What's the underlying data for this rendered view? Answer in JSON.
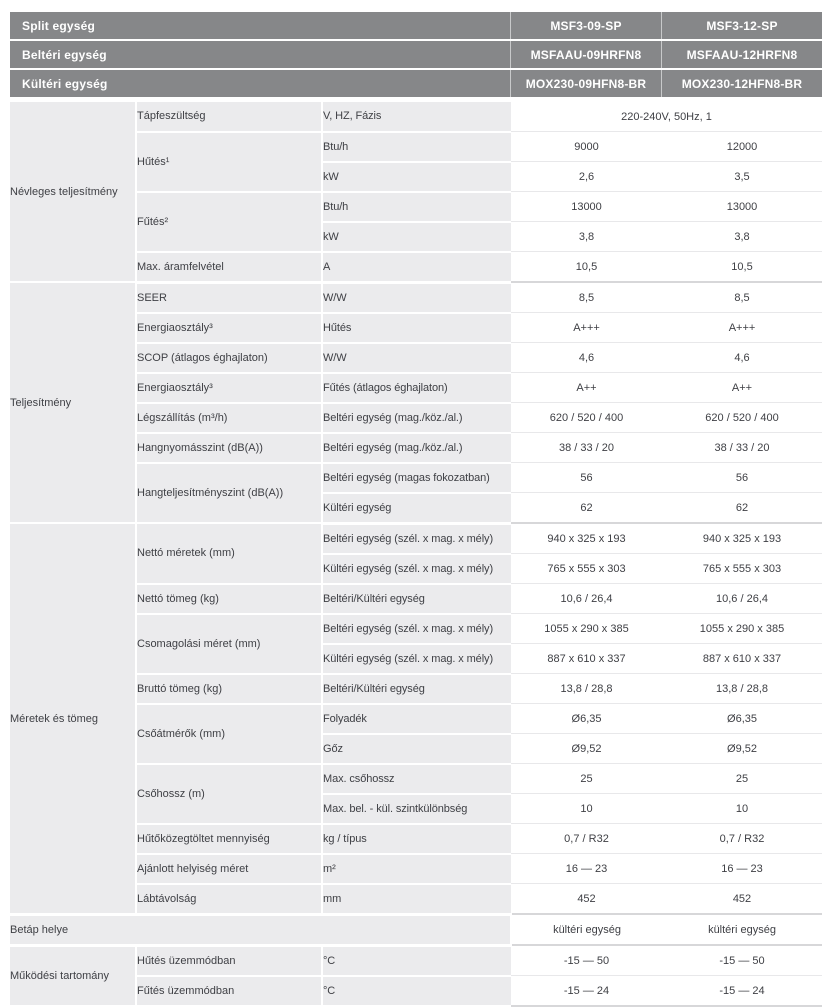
{
  "colors": {
    "header_bar": "#868789",
    "cell_gray": "#ebebed",
    "text": "#3f4045",
    "header_text": "#ffffff",
    "row_line": "#e8e8ea",
    "section_line": "#d7d7d9"
  },
  "table": {
    "header_rows": [
      {
        "label": "Split egység",
        "values": [
          "MSF3-09-SP",
          "MSF3-12-SP"
        ]
      },
      {
        "label": "Beltéri egység",
        "values": [
          "MSFAAU-09HRFN8",
          "MSFAAU-12HRFN8"
        ]
      },
      {
        "label": "Kültéri egység",
        "values": [
          "MOX230-09HFN8-BR",
          "MOX230-12HFN8-BR"
        ]
      }
    ],
    "sections": [
      {
        "label": "Névleges teljesítmény",
        "rows": [
          {
            "property": "Tápfeszültség",
            "property_rowspan": 1,
            "unit": "V, HZ, Fázis",
            "values": [
              "220-240V, 50Hz, 1"
            ],
            "values_span": true
          },
          {
            "property": "Hűtés¹",
            "property_rowspan": 2,
            "unit": "Btu/h",
            "values": [
              "9000",
              "12000"
            ]
          },
          {
            "unit": "kW",
            "values": [
              "2,6",
              "3,5"
            ]
          },
          {
            "property": "Fűtés²",
            "property_rowspan": 2,
            "unit": "Btu/h",
            "values": [
              "13000",
              "13000"
            ]
          },
          {
            "unit": "kW",
            "values": [
              "3,8",
              "3,8"
            ]
          },
          {
            "property": "Max. áramfelvétel",
            "property_rowspan": 1,
            "unit": "A",
            "values": [
              "10,5",
              "10,5"
            ]
          }
        ]
      },
      {
        "label": "Teljesítmény",
        "rows": [
          {
            "property": "SEER",
            "property_rowspan": 1,
            "unit": "W/W",
            "values": [
              "8,5",
              "8,5"
            ]
          },
          {
            "property": "Energiaosztály³",
            "property_rowspan": 1,
            "unit": "Hűtés",
            "values": [
              "A+++",
              "A+++"
            ]
          },
          {
            "property": "SCOP  (átlagos éghajlaton)",
            "property_rowspan": 1,
            "unit": "W/W",
            "values": [
              "4,6",
              "4,6"
            ]
          },
          {
            "property": "Energiaosztály³",
            "property_rowspan": 1,
            "unit": "Fűtés (átlagos éghajlaton)",
            "values": [
              "A++",
              "A++"
            ]
          },
          {
            "property": "Légszállítás (m³/h)",
            "property_rowspan": 1,
            "unit": "Beltéri egység (mag./köz./al.)",
            "values": [
              "620 / 520 / 400",
              "620 / 520 / 400"
            ]
          },
          {
            "property": "Hangnyomásszint (dB(A))",
            "property_rowspan": 1,
            "unit": "Beltéri egység (mag./köz./al.)",
            "values": [
              "38 / 33 / 20",
              "38 / 33 / 20"
            ]
          },
          {
            "property": "Hangteljesítményszint (dB(A))",
            "property_rowspan": 2,
            "unit": "Beltéri egység (magas fokozatban)",
            "values": [
              "56",
              "56"
            ]
          },
          {
            "unit": "Kültéri egység",
            "values": [
              "62",
              "62"
            ]
          }
        ]
      },
      {
        "label": "Méretek és tömeg",
        "rows": [
          {
            "property": "Nettó méretek (mm)",
            "property_rowspan": 2,
            "unit": "Beltéri egység (szél. x mag. x mély)",
            "values": [
              "940 x 325 x 193",
              "940 x 325 x 193"
            ]
          },
          {
            "unit": "Kültéri egység (szél. x mag. x mély)",
            "values": [
              "765 x 555 x 303",
              "765 x 555 x 303"
            ]
          },
          {
            "property": "Nettó tömeg (kg)",
            "property_rowspan": 1,
            "unit": "Beltéri/Kültéri egység",
            "values": [
              "10,6 / 26,4",
              "10,6 / 26,4"
            ]
          },
          {
            "property": "Csomagolási méret (mm)",
            "property_rowspan": 2,
            "unit": "Beltéri egység (szél. x mag. x mély)",
            "values": [
              "1055 x 290 x 385",
              "1055 x 290 x 385"
            ]
          },
          {
            "unit": "Kültéri egység (szél. x mag. x mély)",
            "values": [
              "887 x 610 x 337",
              "887 x 610 x 337"
            ]
          },
          {
            "property": "Bruttó tömeg (kg)",
            "property_rowspan": 1,
            "unit": "Beltéri/Kültéri egység",
            "values": [
              "13,8 / 28,8",
              "13,8 / 28,8"
            ]
          },
          {
            "property": "Csőátmérők (mm)",
            "property_rowspan": 2,
            "unit": "Folyadék",
            "values": [
              "Ø6,35",
              "Ø6,35"
            ]
          },
          {
            "unit": "Gőz",
            "values": [
              "Ø9,52",
              "Ø9,52"
            ]
          },
          {
            "property": "Csőhossz (m)",
            "property_rowspan": 2,
            "unit": "Max. csőhossz",
            "values": [
              "25",
              "25"
            ]
          },
          {
            "unit": "Max. bel. - kül. szintkülönbség",
            "values": [
              "10",
              "10"
            ]
          },
          {
            "property": "Hűtőközegtöltet mennyiség",
            "property_rowspan": 1,
            "unit": "kg / típus",
            "values": [
              "0,7 / R32",
              "0,7 / R32"
            ]
          },
          {
            "property": "Ajánlott helyiség méret",
            "property_rowspan": 1,
            "unit": "m²",
            "values": [
              "16 — 23",
              "16 — 23"
            ]
          },
          {
            "property": "Lábtávolság",
            "property_rowspan": 1,
            "unit": "mm",
            "values": [
              "452",
              "452"
            ]
          }
        ]
      },
      {
        "label": "Betáp helye",
        "label_colspan": 3,
        "rows": [
          {
            "values": [
              "kültéri egység",
              "kültéri egység"
            ]
          }
        ]
      },
      {
        "label": "Működési tartomány",
        "rows": [
          {
            "property": "Hűtés üzemmódban",
            "property_rowspan": 1,
            "unit": "°C",
            "values": [
              "-15 — 50",
              "-15 — 50"
            ]
          },
          {
            "property": "Fűtés üzemmódban",
            "property_rowspan": 1,
            "unit": "°C",
            "values": [
              "-15 — 24",
              "-15 — 24"
            ]
          }
        ]
      }
    ]
  }
}
